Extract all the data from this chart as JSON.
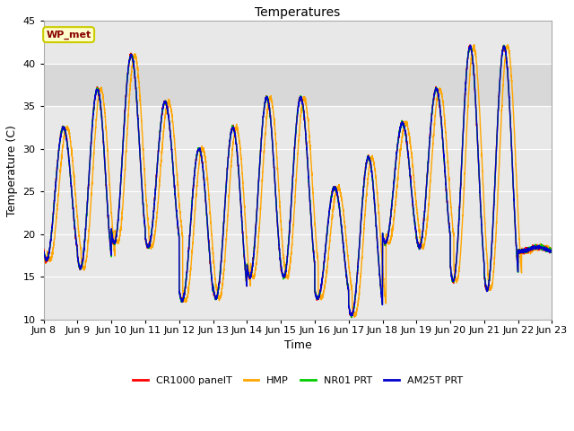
{
  "title": "Temperatures",
  "xlabel": "Time",
  "ylabel": "Temperature (C)",
  "ylim": [
    10,
    45
  ],
  "xlim_start": 0,
  "xlim_end": 360,
  "plot_bg_color": "#e8e8e8",
  "shaded_bg_color": "#d8d8d8",
  "grid_color": "#ffffff",
  "legend_labels": [
    "CR1000 panelT",
    "HMP",
    "NR01 PRT",
    "AM25T PRT"
  ],
  "legend_colors": [
    "#ff0000",
    "#ffa500",
    "#00cc00",
    "#0000cc"
  ],
  "annotation_text": "WP_met",
  "annotation_bg": "#ffffcc",
  "annotation_border": "#cccc00",
  "annotation_text_color": "#880000",
  "tick_labels": [
    "Jun 8",
    "Jun 9",
    "Jun 10",
    "Jun 11",
    "Jun 12",
    "Jun 13",
    "Jun 14",
    "Jun 15",
    "Jun 16",
    "Jun 17",
    "Jun 18",
    "Jun 19",
    "Jun 20",
    "Jun 21",
    "Jun 22",
    "Jun 23"
  ],
  "tick_positions": [
    0,
    24,
    48,
    72,
    96,
    120,
    144,
    168,
    192,
    216,
    240,
    264,
    288,
    312,
    336,
    360
  ],
  "yticks": [
    10,
    15,
    20,
    25,
    30,
    35,
    40,
    45
  ],
  "shaded_ymin": 35,
  "shaded_ymax": 40,
  "line_width": 1.0,
  "figsize": [
    6.4,
    4.8
  ],
  "dpi": 100,
  "day_peaks": [
    32.5,
    37.0,
    41.0,
    35.5,
    30.0,
    32.5,
    36.0,
    36.0,
    25.5,
    29.0,
    33.0,
    37.0,
    42.0,
    42.0,
    18.5
  ],
  "day_troughs": [
    17.0,
    16.0,
    19.0,
    18.5,
    12.2,
    12.5,
    15.0,
    15.0,
    12.5,
    10.5,
    19.0,
    18.5,
    14.5,
    13.5,
    18.0
  ],
  "peak_hour": 14,
  "trough_hour": 5,
  "hmp_lag_hours": 2.5,
  "samples_per_hour": 12
}
